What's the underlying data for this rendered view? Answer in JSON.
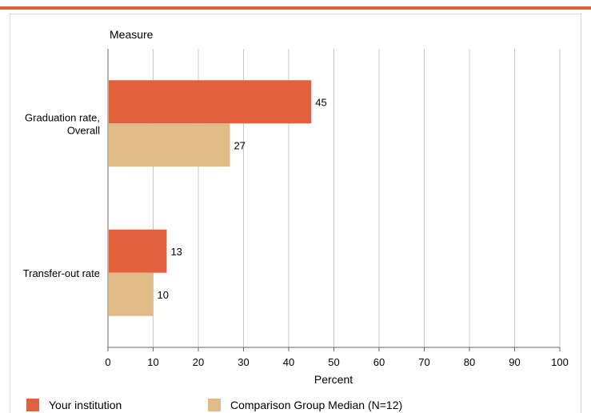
{
  "colors": {
    "accent": "#e2603c",
    "institution": "#e2603c",
    "comparison": "#e0bb88",
    "grid": "#c8c8c8",
    "border": "#d8d8d8"
  },
  "chart_data": {
    "type": "bar",
    "orientation": "horizontal",
    "title": "",
    "category_axis_label": "Measure",
    "xlabel": "Percent",
    "xlim": [
      0,
      100
    ],
    "xticks": [
      0,
      10,
      20,
      30,
      40,
      50,
      60,
      70,
      80,
      90,
      100
    ],
    "grid": true,
    "legend_position": "bottom",
    "categories": [
      "Graduation rate, Overall",
      "Transfer-out rate"
    ],
    "series": [
      {
        "name": "Your institution",
        "values": [
          45,
          13
        ]
      },
      {
        "name": "Comparison Group Median (N=12)",
        "values": [
          27,
          10
        ]
      }
    ]
  }
}
